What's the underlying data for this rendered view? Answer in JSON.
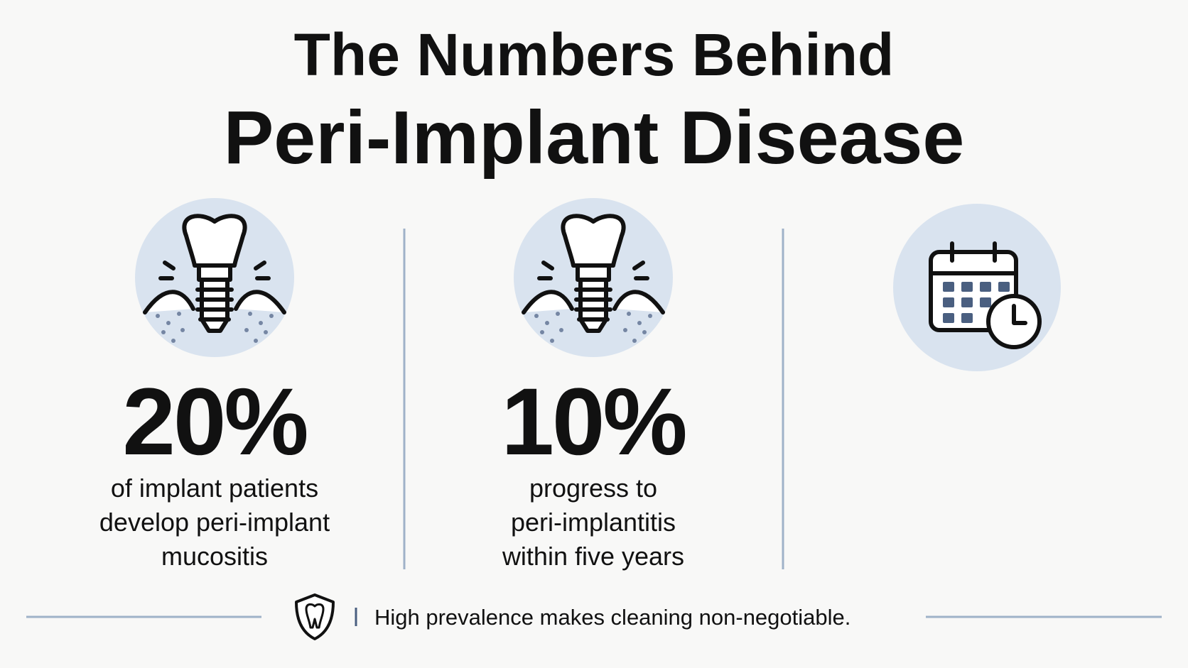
{
  "title": {
    "line1": "The Numbers Behind",
    "line2": "Peri-Implant Disease"
  },
  "stats": [
    {
      "value": "20%",
      "description": [
        "of implant patients",
        "develop peri-implant",
        "mucositis"
      ]
    },
    {
      "value": "10%",
      "description": [
        "progress to",
        "peri-implantitis",
        "within five years"
      ]
    }
  ],
  "footer": {
    "text": "High prevalence makes cleaning non-negotiable."
  }
}
